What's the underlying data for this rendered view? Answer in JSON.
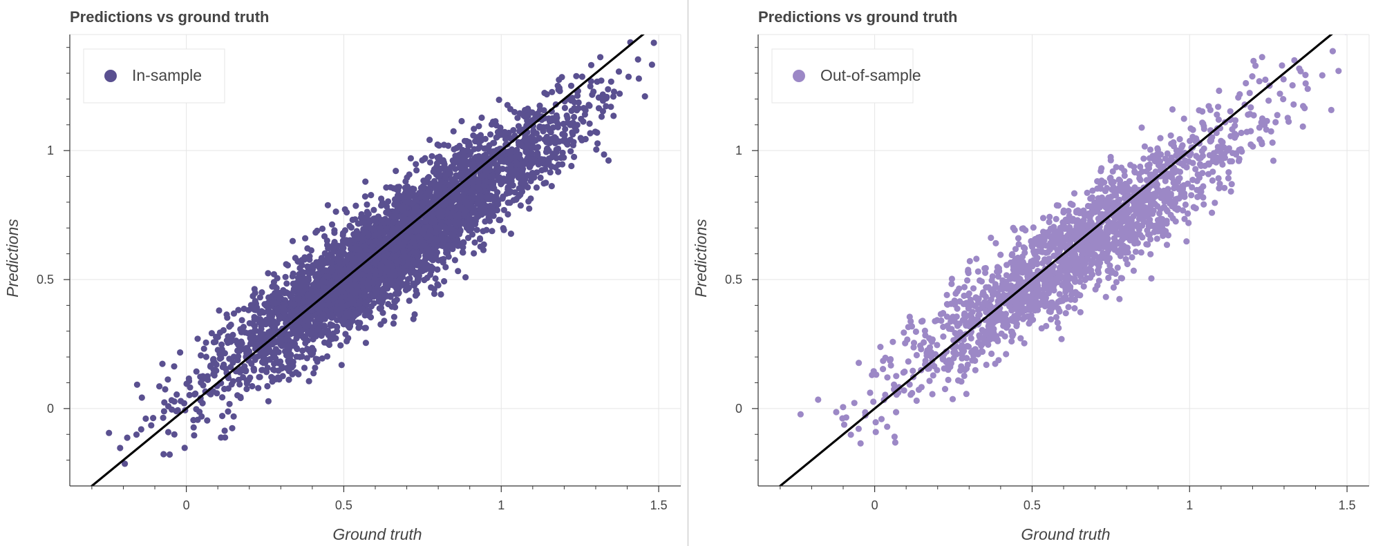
{
  "chart_data": [
    {
      "type": "scatter",
      "title": "Predictions vs ground truth",
      "xlabel": "Ground truth",
      "ylabel": "Predictions",
      "xlim": [
        -0.37,
        1.57
      ],
      "ylim": [
        -0.3,
        1.45
      ],
      "xticks": [
        0,
        0.5,
        1,
        1.5
      ],
      "xtick_labels": [
        "0",
        "0.5",
        "1",
        "1.5"
      ],
      "yticks": [
        0,
        0.5,
        1
      ],
      "ytick_labels": [
        "0",
        "0.5",
        "1"
      ],
      "grid": true,
      "legend_position": "top-left",
      "reference_line": {
        "slope": 1,
        "intercept": 0,
        "color": "#000000"
      },
      "series": [
        {
          "name": "In-sample",
          "color": "#5a5090",
          "n_points": 4200,
          "x_center": 0.65,
          "x_sd": 0.27,
          "x_range": [
            -0.25,
            1.52
          ],
          "slope": 0.85,
          "intercept": 0.07,
          "noise_sd": 0.1
        }
      ]
    },
    {
      "type": "scatter",
      "title": "Predictions vs ground truth",
      "xlabel": "Ground truth",
      "ylabel": "Predictions",
      "xlim": [
        -0.37,
        1.57
      ],
      "ylim": [
        -0.3,
        1.45
      ],
      "xticks": [
        0,
        0.5,
        1,
        1.5
      ],
      "xtick_labels": [
        "0",
        "0.5",
        "1",
        "1.5"
      ],
      "yticks": [
        0,
        0.5,
        1
      ],
      "ytick_labels": [
        "0",
        "0.5",
        "1"
      ],
      "grid": true,
      "legend_position": "top-left",
      "reference_line": {
        "slope": 1,
        "intercept": 0,
        "color": "#000000"
      },
      "series": [
        {
          "name": "Out-of-sample",
          "color": "#9c88c6",
          "n_points": 1900,
          "x_center": 0.65,
          "x_sd": 0.27,
          "x_range": [
            -0.25,
            1.57
          ],
          "slope": 0.85,
          "intercept": 0.07,
          "noise_sd": 0.1
        }
      ]
    }
  ]
}
